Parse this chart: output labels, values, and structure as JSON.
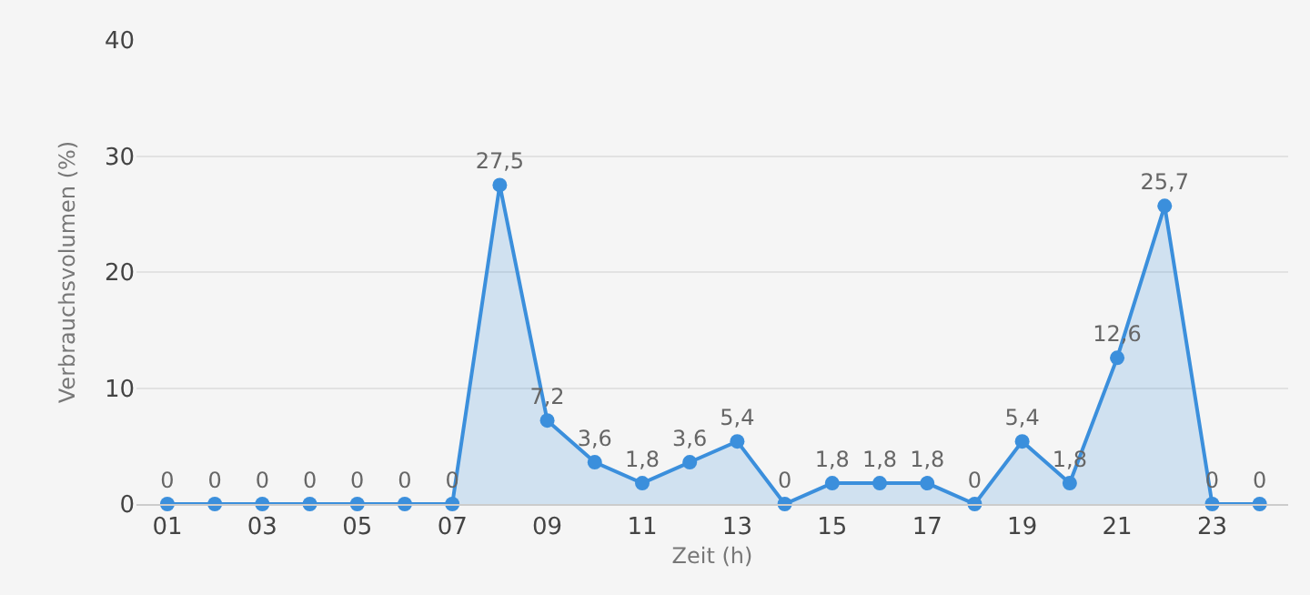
{
  "chart_data": {
    "type": "area",
    "xlabel": "Zeit (h)",
    "ylabel": "Verbrauchsvolumen (%)",
    "categories": [
      "01",
      null,
      "03",
      null,
      "05",
      null,
      "07",
      null,
      "09",
      null,
      "11",
      null,
      "13",
      null,
      "15",
      null,
      "17",
      null,
      "19",
      null,
      "21",
      null,
      "23",
      null
    ],
    "series": [
      {
        "color": "#3b8fdc",
        "values": [
          0,
          0,
          0,
          0,
          0,
          0,
          0,
          27.5,
          7.2,
          3.6,
          1.8,
          3.6,
          5.4,
          0,
          1.8,
          1.8,
          1.8,
          0,
          5.4,
          1.8,
          12.6,
          25.7,
          0,
          0
        ],
        "value_labels": [
          "0",
          "0",
          "0",
          "0",
          "0",
          "0",
          "0",
          "27,5",
          "7,2",
          "3,6",
          "1,8",
          "3,6",
          "5,4",
          "0",
          "1,8",
          "1,8",
          "1,8",
          "0",
          "5,4",
          "1,8",
          "12,6",
          "25,7",
          "0",
          "0"
        ]
      }
    ],
    "ylim": [
      0,
      40
    ],
    "yticks": [
      0,
      10,
      20,
      30,
      40
    ],
    "grid": "y",
    "marker": "circle",
    "line_style": "solid"
  }
}
